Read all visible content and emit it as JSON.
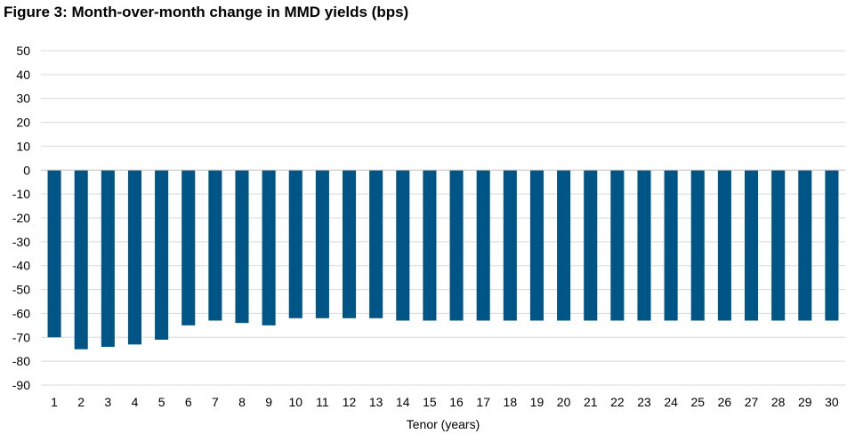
{
  "chart_data": {
    "type": "bar",
    "title": "Figure 3: Month-over-month change in MMD yields (bps)",
    "xlabel": "Tenor (years)",
    "ylabel": "",
    "ylim": [
      -90,
      50
    ],
    "yticks": [
      50,
      40,
      30,
      20,
      10,
      0,
      -10,
      -20,
      -30,
      -40,
      -50,
      -60,
      -70,
      -80,
      -90
    ],
    "grid": true,
    "legend": "none",
    "bar_color": "#005587",
    "categories": [
      "1",
      "2",
      "3",
      "4",
      "5",
      "6",
      "7",
      "8",
      "9",
      "10",
      "11",
      "12",
      "13",
      "14",
      "15",
      "16",
      "17",
      "18",
      "19",
      "20",
      "21",
      "22",
      "23",
      "24",
      "25",
      "26",
      "27",
      "28",
      "29",
      "30"
    ],
    "values": [
      -70,
      -75,
      -74,
      -73,
      -71,
      -65,
      -63,
      -64,
      -65,
      -62,
      -62,
      -62,
      -62,
      -63,
      -63,
      -63,
      -63,
      -63,
      -63,
      -63,
      -63,
      -63,
      -63,
      -63,
      -63,
      -63,
      -63,
      -63,
      -63,
      -63
    ]
  }
}
